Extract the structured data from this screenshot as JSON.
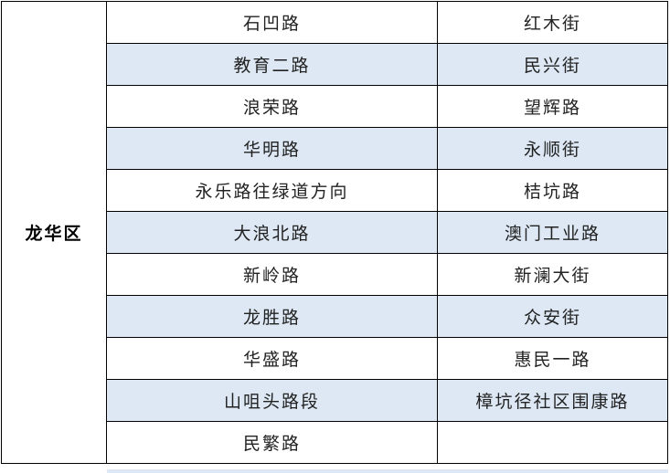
{
  "district": "龙华区",
  "rows": [
    {
      "a": "石凹路",
      "b": "红木街",
      "shaded": false
    },
    {
      "a": "教育二路",
      "b": "民兴街",
      "shaded": true
    },
    {
      "a": "浪荣路",
      "b": "望辉路",
      "shaded": false
    },
    {
      "a": "华明路",
      "b": "永顺街",
      "shaded": true
    },
    {
      "a": "永乐路往绿道方向",
      "b": "桔坑路",
      "shaded": false
    },
    {
      "a": "大浪北路",
      "b": "澳门工业路",
      "shaded": true
    },
    {
      "a": "新岭路",
      "b": "新澜大街",
      "shaded": false
    },
    {
      "a": "龙胜路",
      "b": "众安街",
      "shaded": true
    },
    {
      "a": "华盛路",
      "b": "惠民一路",
      "shaded": false
    },
    {
      "a": "山咀头路段",
      "b": "樟坑径社区围康路",
      "shaded": true
    },
    {
      "a": "民繁路",
      "b": "",
      "shaded": false
    }
  ],
  "colors": {
    "shade": "#dde8f4",
    "border": "#000000"
  }
}
